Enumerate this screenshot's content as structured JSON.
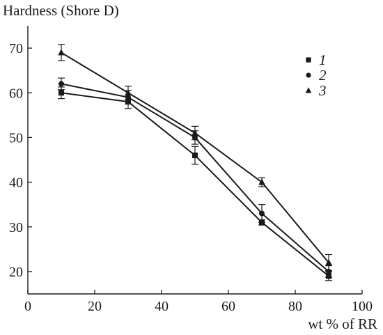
{
  "chart_data": {
    "type": "line",
    "title": "",
    "ylabel": "Hardness (Shore D)",
    "xlabel": "wt % of RR",
    "xlim": [
      0,
      100
    ],
    "ylim": [
      15,
      75
    ],
    "xticks": [
      0,
      20,
      40,
      60,
      80,
      100
    ],
    "yticks": [
      20,
      30,
      40,
      50,
      60,
      70
    ],
    "grid": false,
    "legend_position": "top-right",
    "x": [
      10,
      30,
      50,
      70,
      90
    ],
    "series": [
      {
        "name": "1",
        "marker": "square",
        "values": [
          60,
          58,
          46,
          31,
          19
        ],
        "errors": [
          1.3,
          1.5,
          2.0,
          0.6,
          1.0
        ]
      },
      {
        "name": "2",
        "marker": "circle",
        "values": [
          62,
          59,
          50,
          33,
          20
        ],
        "errors": [
          1.3,
          1.5,
          1.5,
          2.0,
          1.3
        ]
      },
      {
        "name": "3",
        "marker": "triangle",
        "values": [
          69,
          60,
          51,
          40,
          22
        ],
        "errors": [
          1.8,
          1.5,
          1.5,
          1.0,
          1.8
        ]
      }
    ]
  }
}
